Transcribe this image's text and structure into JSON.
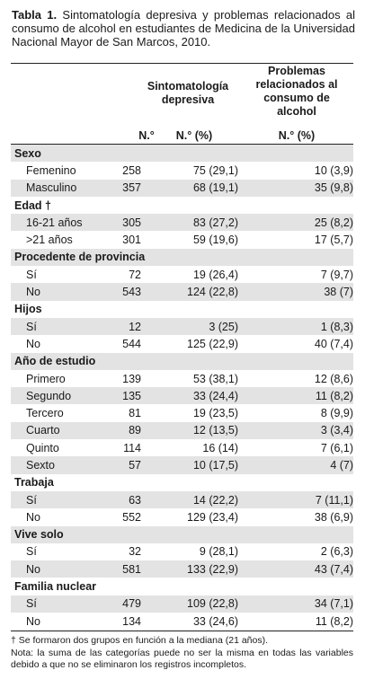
{
  "caption": {
    "label": "Tabla 1.",
    "text": "Sintomatología depresiva y problemas relacionados al consumo de alcohol en estudiantes de Medicina de la Universidad Nacional Mayor de San Marcos, 2010."
  },
  "columns": {
    "n": "N.°",
    "depresiva_title": "Sintomatología depresiva",
    "depresiva_sub": "N.° (%)",
    "alcohol_title": "Problemas relacionados al consumo de alcohol",
    "alcohol_sub": "N.° (%)"
  },
  "sections": [
    {
      "title": "Sexo",
      "rows": [
        {
          "label": "Femenino",
          "n": "258",
          "dep": "75 (29,1)",
          "alc": "10 (3,9)"
        },
        {
          "label": "Masculino",
          "n": "357",
          "dep": "68 (19,1)",
          "alc": "35 (9,8)"
        }
      ]
    },
    {
      "title": "Edad †",
      "rows": [
        {
          "label": "16-21 años",
          "n": "305",
          "dep": "83 (27,2)",
          "alc": "25 (8,2)"
        },
        {
          "label": ">21 años",
          "n": "301",
          "dep": "59 (19,6)",
          "alc": "17 (5,7)"
        }
      ]
    },
    {
      "title": "Procedente de provincia",
      "rows": [
        {
          "label": "Sí",
          "n": "72",
          "dep": "19 (26,4)",
          "alc": "7 (9,7)"
        },
        {
          "label": "No",
          "n": "543",
          "dep": "124 (22,8)",
          "alc": "38 (7)"
        }
      ]
    },
    {
      "title": "Hijos",
      "rows": [
        {
          "label": "Sí",
          "n": "12",
          "dep": "3 (25)",
          "alc": "1 (8,3)"
        },
        {
          "label": "No",
          "n": "544",
          "dep": "125 (22,9)",
          "alc": "40 (7,4)"
        }
      ]
    },
    {
      "title": "Año de estudio",
      "rows": [
        {
          "label": "Primero",
          "n": "139",
          "dep": "53 (38,1)",
          "alc": "12 (8,6)"
        },
        {
          "label": "Segundo",
          "n": "135",
          "dep": "33 (24,4)",
          "alc": "11 (8,2)"
        },
        {
          "label": "Tercero",
          "n": "81",
          "dep": "19 (23,5)",
          "alc": "8 (9,9)"
        },
        {
          "label": "Cuarto",
          "n": "89",
          "dep": "12 (13,5)",
          "alc": "3 (3,4)"
        },
        {
          "label": "Quinto",
          "n": "114",
          "dep": "16 (14)",
          "alc": "7 (6,1)"
        },
        {
          "label": "Sexto",
          "n": "57",
          "dep": "10 (17,5)",
          "alc": "4 (7)"
        }
      ]
    },
    {
      "title": "Trabaja",
      "rows": [
        {
          "label": "Sí",
          "n": "63",
          "dep": "14 (22,2)",
          "alc": "7 (11,1)"
        },
        {
          "label": "No",
          "n": "552",
          "dep": "129 (23,4)",
          "alc": "38 (6,9)"
        }
      ]
    },
    {
      "title": "Vive solo",
      "rows": [
        {
          "label": "Sí",
          "n": "32",
          "dep": "9 (28,1)",
          "alc": "2 (6,3)"
        },
        {
          "label": "No",
          "n": "581",
          "dep": "133 (22,9)",
          "alc": "43 (7,4)"
        }
      ]
    },
    {
      "title": "Familia nuclear",
      "rows": [
        {
          "label": "Sí",
          "n": "479",
          "dep": "109 (22,8)",
          "alc": "34 (7,1)"
        },
        {
          "label": "No",
          "n": "134",
          "dep": "33 (24,6)",
          "alc": "11 (8,2)"
        }
      ]
    }
  ],
  "footnotes": {
    "dagger": "† Se formaron dos grupos en función a la mediana (21 años).",
    "note": "Nota: la suma de las categorías puede no ser la misma en todas las variables debido a que no se eliminaron los registros incompletos."
  },
  "colors": {
    "shade": "#e3e3e3",
    "rule": "#222222"
  }
}
